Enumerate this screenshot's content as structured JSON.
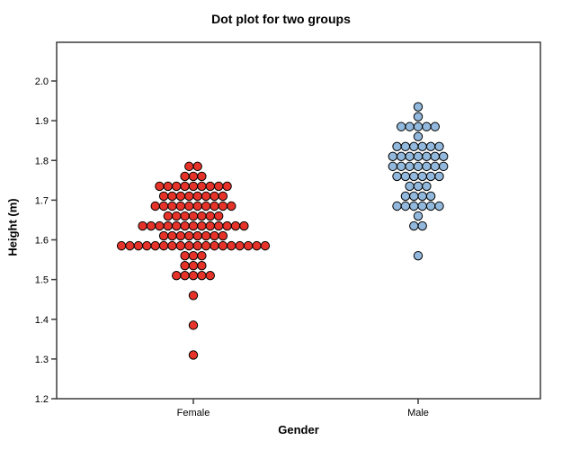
{
  "chart_data": {
    "type": "scatter",
    "subtype": "dotplot",
    "title": "Dot plot for two groups",
    "xlabel": "Gender",
    "ylabel": "Height (m)",
    "ylim": [
      1.2,
      2.098
    ],
    "bin_width": 0.025,
    "grid": false,
    "legend": "none",
    "y_ticks": [
      "2.0",
      "1.9",
      "1.8",
      "1.7",
      "1.6",
      "1.5",
      "1.4",
      "1.3",
      "1.2"
    ],
    "categories": [
      "Female",
      "Male"
    ],
    "colors": {
      "female_dot": "#e63329",
      "male_dot": "#92b9dd",
      "dot_stroke": "#000000",
      "frame": "#3c3c3c",
      "text": "#000000"
    },
    "groups": [
      {
        "label": "Female",
        "color": "#e63329",
        "bins_value_count": [
          [
            1.785,
            2
          ],
          [
            1.76,
            3
          ],
          [
            1.735,
            9
          ],
          [
            1.71,
            8
          ],
          [
            1.685,
            10
          ],
          [
            1.66,
            7
          ],
          [
            1.635,
            13
          ],
          [
            1.61,
            8
          ],
          [
            1.585,
            18
          ],
          [
            1.56,
            3
          ],
          [
            1.535,
            3
          ],
          [
            1.51,
            5
          ],
          [
            1.46,
            1
          ],
          [
            1.385,
            1
          ],
          [
            1.31,
            1
          ]
        ],
        "n": 92
      },
      {
        "label": "Male",
        "color": "#92b9dd",
        "bins_value_count": [
          [
            1.935,
            1
          ],
          [
            1.91,
            1
          ],
          [
            1.885,
            5
          ],
          [
            1.86,
            1
          ],
          [
            1.835,
            6
          ],
          [
            1.81,
            7
          ],
          [
            1.785,
            7
          ],
          [
            1.76,
            6
          ],
          [
            1.735,
            3
          ],
          [
            1.71,
            4
          ],
          [
            1.685,
            6
          ],
          [
            1.66,
            1
          ],
          [
            1.635,
            2
          ],
          [
            1.56,
            1
          ]
        ],
        "n": 51
      }
    ]
  }
}
